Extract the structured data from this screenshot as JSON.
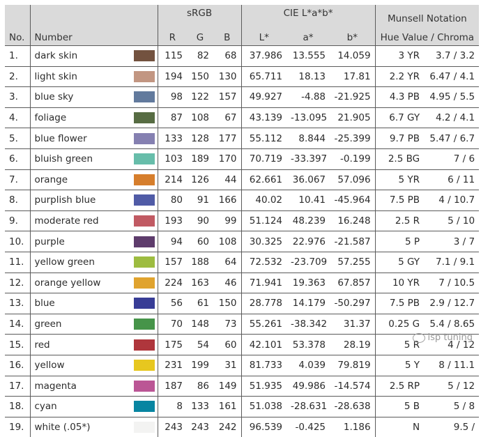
{
  "header": {
    "no": "No.",
    "number": "Number",
    "srgb": "sRGB",
    "cielab": "CIE L*a*b*",
    "munsell_top": "Munsell Notation",
    "munsell_sub": "Hue Value / Chroma",
    "r": "R",
    "g": "G",
    "b": "B",
    "L": "L*",
    "a": "a*",
    "bstar": "b*"
  },
  "rows": [
    {
      "no": "1.",
      "name": "dark skin",
      "color": "#73523f",
      "R": "115",
      "G": "82",
      "B": "68",
      "L": "37.986",
      "a": "13.555",
      "b": "14.059",
      "hue": "3 YR",
      "vc": "3.7 / 3.2"
    },
    {
      "no": "2.",
      "name": "light skin",
      "color": "#c29682",
      "R": "194",
      "G": "150",
      "B": "130",
      "L": "65.711",
      "a": "18.13",
      "b": "17.81",
      "hue": "2.2 YR",
      "vc": "6.47 / 4.1"
    },
    {
      "no": "3.",
      "name": "blue sky",
      "color": "#627a9d",
      "R": "98",
      "G": "122",
      "B": "157",
      "L": "49.927",
      "a": "-4.88",
      "b": "-21.925",
      "hue": "4.3 PB",
      "vc": "4.95 / 5.5"
    },
    {
      "no": "4.",
      "name": "foliage",
      "color": "#576c43",
      "R": "87",
      "G": "108",
      "B": "67",
      "L": "43.139",
      "a": "-13.095",
      "b": "21.905",
      "hue": "6.7 GY",
      "vc": "4.2 / 4.1"
    },
    {
      "no": "5.",
      "name": "blue flower",
      "color": "#8580b1",
      "R": "133",
      "G": "128",
      "B": "177",
      "L": "55.112",
      "a": "8.844",
      "b": "-25.399",
      "hue": "9.7 PB",
      "vc": "5.47 / 6.7"
    },
    {
      "no": "6.",
      "name": "bluish green",
      "color": "#67bdaa",
      "R": "103",
      "G": "189",
      "B": "170",
      "L": "70.719",
      "a": "-33.397",
      "b": "-0.199",
      "hue": "2.5 BG",
      "vc": "7 / 6"
    },
    {
      "no": "7.",
      "name": "orange",
      "color": "#d67e2c",
      "R": "214",
      "G": "126",
      "B": "44",
      "L": "62.661",
      "a": "36.067",
      "b": "57.096",
      "hue": "5 YR",
      "vc": "6 / 11"
    },
    {
      "no": "8.",
      "name": "purplish blue",
      "color": "#505ba6",
      "R": "80",
      "G": "91",
      "B": "166",
      "L": "40.02",
      "a": "10.41",
      "b": "-45.964",
      "hue": "7.5 PB",
      "vc": "4 / 10.7"
    },
    {
      "no": "9.",
      "name": "moderate red",
      "color": "#c15a63",
      "R": "193",
      "G": "90",
      "B": "99",
      "L": "51.124",
      "a": "48.239",
      "b": "16.248",
      "hue": "2.5 R",
      "vc": "5 / 10"
    },
    {
      "no": "10.",
      "name": "purple",
      "color": "#5e3c6c",
      "R": "94",
      "G": "60",
      "B": "108",
      "L": "30.325",
      "a": "22.976",
      "b": "-21.587",
      "hue": "5 P",
      "vc": "3 / 7"
    },
    {
      "no": "11.",
      "name": "yellow green",
      "color": "#9dbc40",
      "R": "157",
      "G": "188",
      "B": "64",
      "L": "72.532",
      "a": "-23.709",
      "b": "57.255",
      "hue": "5 GY",
      "vc": "7.1 / 9.1"
    },
    {
      "no": "12.",
      "name": "orange yellow",
      "color": "#e0a32e",
      "R": "224",
      "G": "163",
      "B": "46",
      "L": "71.941",
      "a": "19.363",
      "b": "67.857",
      "hue": "10 YR",
      "vc": "7 / 10.5"
    },
    {
      "no": "13.",
      "name": "blue",
      "color": "#383d96",
      "R": "56",
      "G": "61",
      "B": "150",
      "L": "28.778",
      "a": "14.179",
      "b": "-50.297",
      "hue": "7.5 PB",
      "vc": "2.9 / 12.7"
    },
    {
      "no": "14.",
      "name": "green",
      "color": "#469449",
      "R": "70",
      "G": "148",
      "B": "73",
      "L": "55.261",
      "a": "-38.342",
      "b": "31.37",
      "hue": "0.25 G",
      "vc": "5.4 / 8.65"
    },
    {
      "no": "15.",
      "name": "red",
      "color": "#af363c",
      "R": "175",
      "G": "54",
      "B": "60",
      "L": "42.101",
      "a": "53.378",
      "b": "28.19",
      "hue": "5 R",
      "vc": "4 / 12"
    },
    {
      "no": "16.",
      "name": "yellow",
      "color": "#e7c71f",
      "R": "231",
      "G": "199",
      "B": "31",
      "L": "81.733",
      "a": "4.039",
      "b": "79.819",
      "hue": "5 Y",
      "vc": "8 / 11.1"
    },
    {
      "no": "17.",
      "name": "magenta",
      "color": "#bb5695",
      "R": "187",
      "G": "86",
      "B": "149",
      "L": "51.935",
      "a": "49.986",
      "b": "-14.574",
      "hue": "2.5 RP",
      "vc": "5 / 12"
    },
    {
      "no": "18.",
      "name": "cyan",
      "color": "#0885a1",
      "R": "8",
      "G": "133",
      "B": "161",
      "L": "51.038",
      "a": "-28.631",
      "b": "-28.638",
      "hue": "5 B",
      "vc": "5 / 8"
    },
    {
      "no": "19.",
      "name": "white (.05*)",
      "color": "#f3f3f2",
      "R": "243",
      "G": "243",
      "B": "242",
      "L": "96.539",
      "a": "-0.425",
      "b": "1.186",
      "hue": "N",
      "vc": "9.5 /"
    }
  ],
  "watermark": "isp tuning"
}
